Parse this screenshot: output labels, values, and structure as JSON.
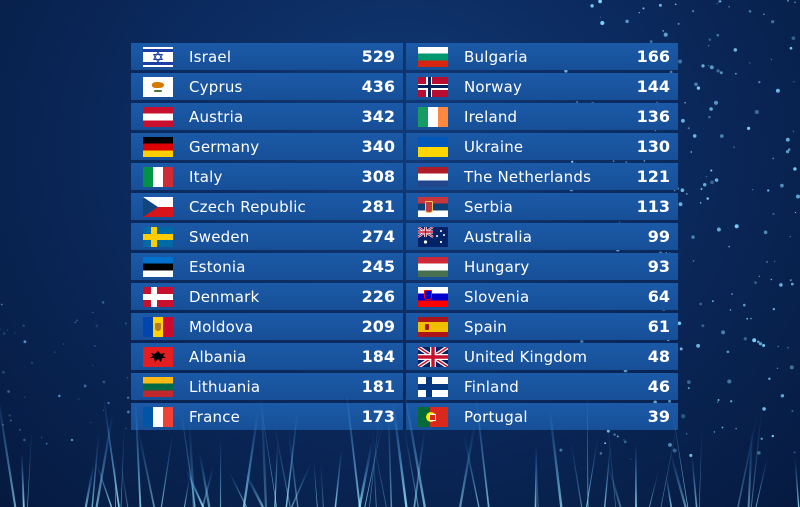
{
  "scoreboard": {
    "left": [
      {
        "country": "Israel",
        "points": "529",
        "flag": "israel-flag"
      },
      {
        "country": "Cyprus",
        "points": "436",
        "flag": "cyprus-flag"
      },
      {
        "country": "Austria",
        "points": "342",
        "flag": "austria-flag"
      },
      {
        "country": "Germany",
        "points": "340",
        "flag": "germany-flag"
      },
      {
        "country": "Italy",
        "points": "308",
        "flag": "italy-flag"
      },
      {
        "country": "Czech Republic",
        "points": "281",
        "flag": "czech-republic-flag"
      },
      {
        "country": "Sweden",
        "points": "274",
        "flag": "sweden-flag"
      },
      {
        "country": "Estonia",
        "points": "245",
        "flag": "estonia-flag"
      },
      {
        "country": "Denmark",
        "points": "226",
        "flag": "denmark-flag"
      },
      {
        "country": "Moldova",
        "points": "209",
        "flag": "moldova-flag"
      },
      {
        "country": "Albania",
        "points": "184",
        "flag": "albania-flag"
      },
      {
        "country": "Lithuania",
        "points": "181",
        "flag": "lithuania-flag"
      },
      {
        "country": "France",
        "points": "173",
        "flag": "france-flag"
      }
    ],
    "right": [
      {
        "country": "Bulgaria",
        "points": "166",
        "flag": "bulgaria-flag"
      },
      {
        "country": "Norway",
        "points": "144",
        "flag": "norway-flag"
      },
      {
        "country": "Ireland",
        "points": "136",
        "flag": "ireland-flag"
      },
      {
        "country": "Ukraine",
        "points": "130",
        "flag": "ukraine-flag"
      },
      {
        "country": "The Netherlands",
        "points": "121",
        "flag": "netherlands-flag"
      },
      {
        "country": "Serbia",
        "points": "113",
        "flag": "serbia-flag"
      },
      {
        "country": "Australia",
        "points": "99",
        "flag": "australia-flag"
      },
      {
        "country": "Hungary",
        "points": "93",
        "flag": "hungary-flag"
      },
      {
        "country": "Slovenia",
        "points": "64",
        "flag": "slovenia-flag"
      },
      {
        "country": "Spain",
        "points": "61",
        "flag": "spain-flag"
      },
      {
        "country": "United Kingdom",
        "points": "48",
        "flag": "united-kingdom-flag"
      },
      {
        "country": "Finland",
        "points": "46",
        "flag": "finland-flag"
      },
      {
        "country": "Portugal",
        "points": "39",
        "flag": "portugal-flag"
      }
    ]
  },
  "colors": {
    "background": "#0b2a5e",
    "row": "#1b5aa8",
    "text": "#ffffff"
  }
}
